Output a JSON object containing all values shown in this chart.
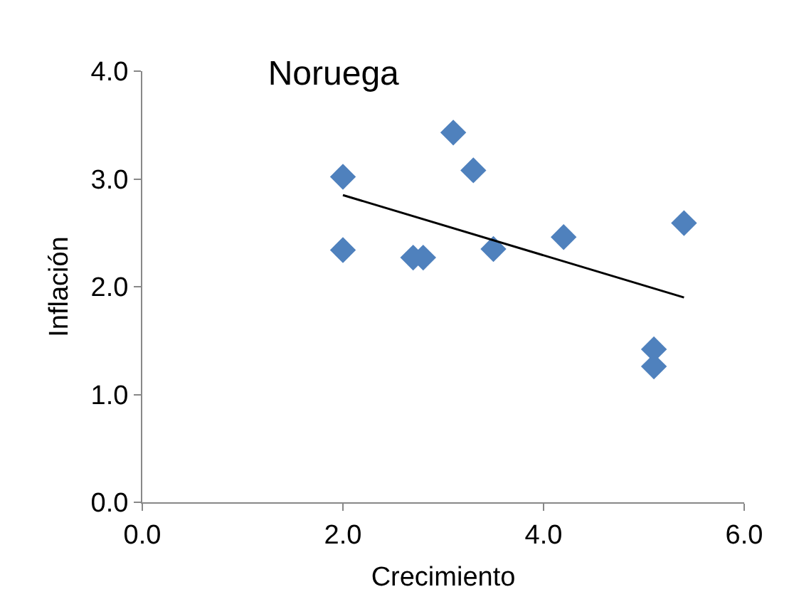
{
  "chart_data": {
    "type": "scatter",
    "title": "Noruega",
    "xlabel": "Crecimiento",
    "ylabel": "Inflación",
    "xlim": [
      0,
      6
    ],
    "xticks": [
      {
        "value": 0,
        "label": "0.0"
      },
      {
        "value": 2,
        "label": "2.0"
      },
      {
        "value": 4,
        "label": "4.0"
      },
      {
        "value": 6,
        "label": "6.0"
      }
    ],
    "ylim": [
      0,
      4
    ],
    "yticks": [
      {
        "value": 0,
        "label": "0.0"
      },
      {
        "value": 1,
        "label": "1.0"
      },
      {
        "value": 2,
        "label": "2.0"
      },
      {
        "value": 3,
        "label": "3.0"
      },
      {
        "value": 4,
        "label": "4.0"
      }
    ],
    "grid": false,
    "legend": false,
    "series": [
      {
        "type": "scatter",
        "marker": "diamond",
        "color": "#4f81bd",
        "x": [
          2.0,
          2.0,
          2.7,
          2.8,
          3.1,
          3.3,
          3.5,
          4.2,
          5.1,
          5.1,
          5.4
        ],
        "values": [
          3.02,
          2.34,
          2.27,
          2.27,
          3.43,
          3.08,
          2.35,
          2.46,
          1.42,
          1.26,
          2.59
        ]
      },
      {
        "type": "line",
        "color": "#000000",
        "line_style": "solid",
        "x": [
          2.0,
          5.4
        ],
        "values": [
          2.85,
          1.9
        ]
      }
    ]
  }
}
